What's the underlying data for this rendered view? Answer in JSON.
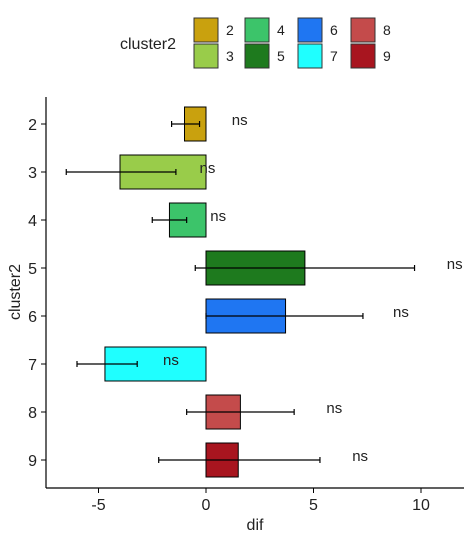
{
  "chart_data": {
    "type": "bar",
    "orientation": "horizontal",
    "xlabel": "dif",
    "ylabel": "cluster2",
    "xlim": [
      -7.5,
      12
    ],
    "xticks": [
      -5,
      0,
      5,
      10
    ],
    "grid": false,
    "legend": {
      "title": "cluster2",
      "placement": "top",
      "items": [
        {
          "label": "2",
          "color": "#C9A10E"
        },
        {
          "label": "3",
          "color": "#99CC4A"
        },
        {
          "label": "4",
          "color": "#3CC46A"
        },
        {
          "label": "5",
          "color": "#1E7A1E"
        },
        {
          "label": "6",
          "color": "#1F76F2"
        },
        {
          "label": "7",
          "color": "#1FFFFF"
        },
        {
          "label": "8",
          "color": "#C44B4B"
        },
        {
          "label": "9",
          "color": "#A8151F"
        }
      ]
    },
    "categories": [
      "2",
      "3",
      "4",
      "5",
      "6",
      "7",
      "8",
      "9"
    ],
    "values": [
      -1.0,
      -4.0,
      -1.7,
      4.6,
      3.7,
      -4.7,
      1.6,
      1.5
    ],
    "error_low": [
      -1.6,
      -6.5,
      -2.5,
      -0.5,
      0.0,
      -6.0,
      -0.9,
      -2.2
    ],
    "error_high": [
      -0.3,
      -1.4,
      -0.9,
      9.7,
      7.3,
      -3.2,
      4.1,
      5.3
    ],
    "annotations": [
      "ns",
      "ns",
      "ns",
      "ns",
      "ns",
      "ns",
      "ns",
      "ns"
    ],
    "annotation_x": [
      1.2,
      -0.3,
      0.2,
      11.2,
      8.7,
      -2.0,
      5.6,
      6.8
    ]
  }
}
